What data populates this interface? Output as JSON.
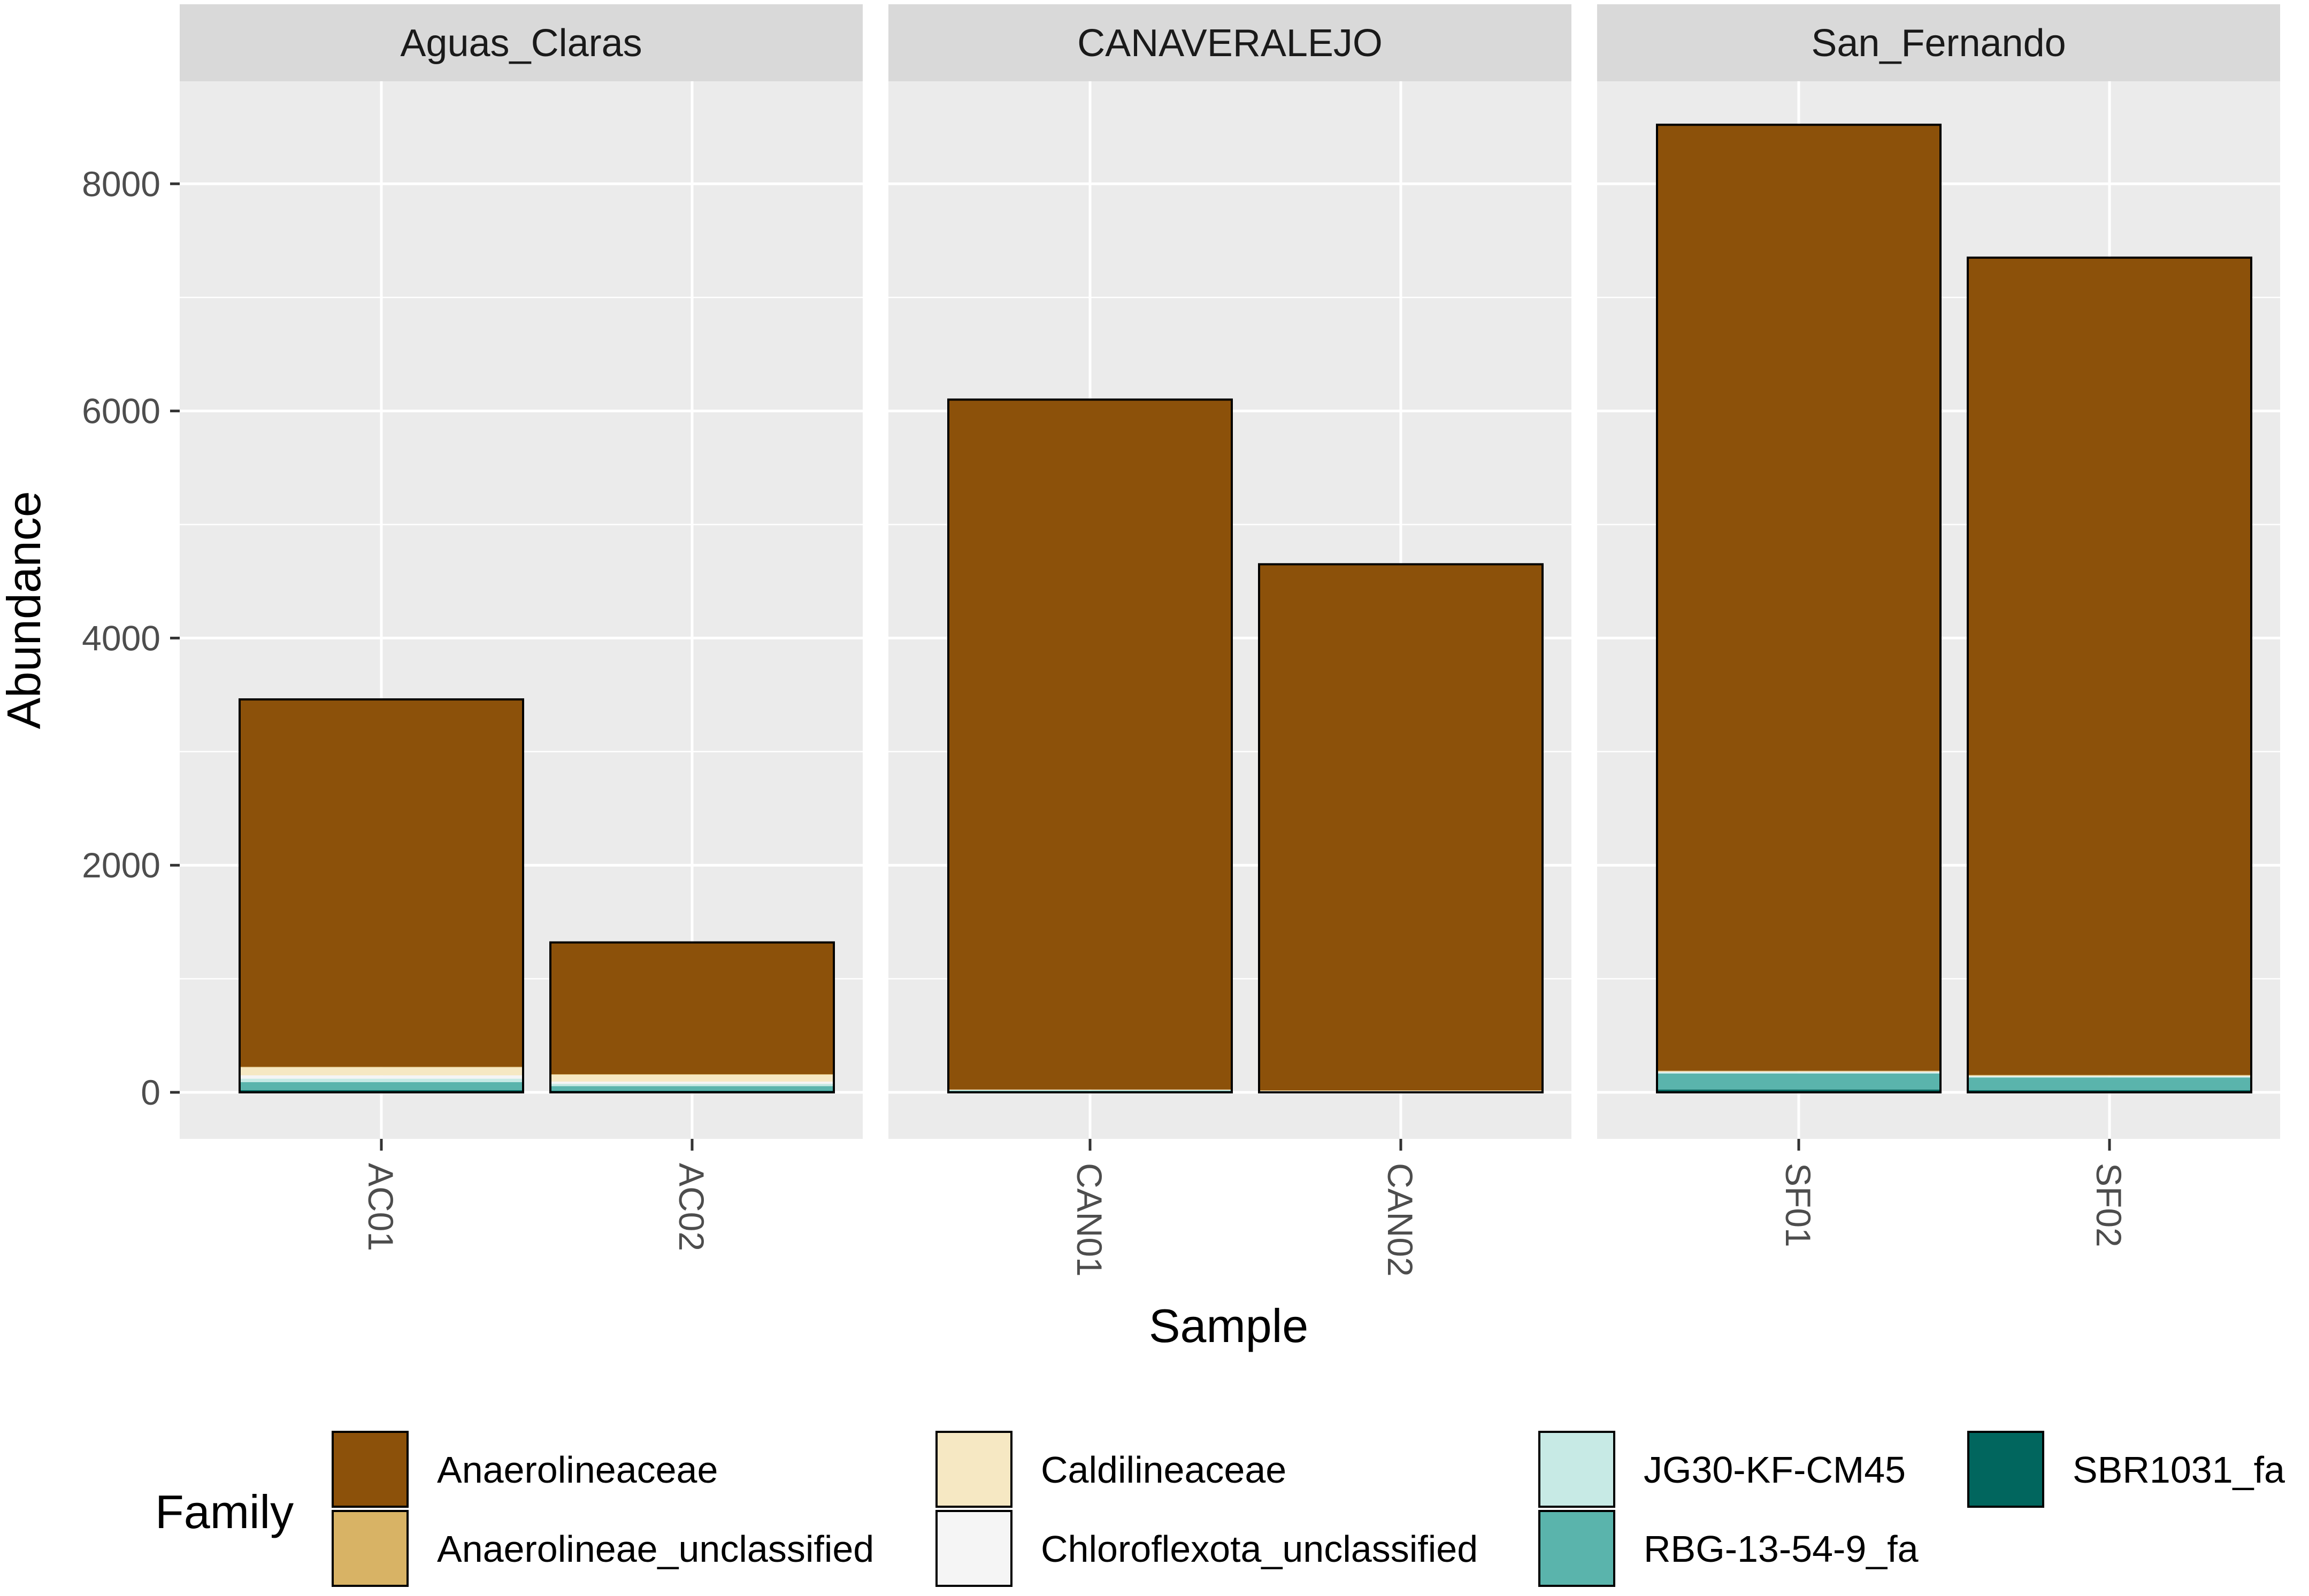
{
  "chart_data": {
    "type": "bar",
    "stacked": true,
    "faceted_by": "site",
    "ylabel": "Abundance",
    "xlabel": "Sample",
    "ylim": [
      0,
      8800
    ],
    "yticks": [
      0,
      2000,
      4000,
      6000,
      8000
    ],
    "facets": [
      {
        "name": "Aguas_Claras",
        "samples": [
          "AC01",
          "AC02"
        ]
      },
      {
        "name": "CANAVERALEJO",
        "samples": [
          "CAN01",
          "CAN02"
        ]
      },
      {
        "name": "San_Fernando",
        "samples": [
          "SF01",
          "SF02"
        ]
      }
    ],
    "categories": [
      "AC01",
      "AC02",
      "CAN01",
      "CAN02",
      "SF01",
      "SF02"
    ],
    "series": [
      {
        "name": "SBR1031_fa",
        "color": "#01665e",
        "values": [
          20,
          15,
          5,
          3,
          25,
          20
        ]
      },
      {
        "name": "RBG-13-54-9_fa",
        "color": "#5ab4ac",
        "values": [
          70,
          40,
          10,
          5,
          140,
          110
        ]
      },
      {
        "name": "JG30-KF-CM45",
        "color": "#c7eae5",
        "values": [
          30,
          20,
          3,
          2,
          10,
          8
        ]
      },
      {
        "name": "Chloroflexota_unclassified",
        "color": "#f5f5f5",
        "values": [
          30,
          20,
          2,
          2,
          5,
          5
        ]
      },
      {
        "name": "Caldilineaceae",
        "color": "#f6e8c3",
        "values": [
          70,
          60,
          2,
          2,
          5,
          5
        ]
      },
      {
        "name": "Anaerolineae_unclassified",
        "color": "#d8b365",
        "values": [
          5,
          5,
          3,
          3,
          5,
          5
        ]
      },
      {
        "name": "Anaerolineaceae",
        "color": "#8c510a",
        "values": [
          3235,
          1160,
          6075,
          4633,
          8330,
          7197
        ]
      }
    ],
    "legend": {
      "title": "Family",
      "position": "bottom",
      "entries": [
        {
          "name": "Anaerolineaceae",
          "color": "#8c510a"
        },
        {
          "name": "Anaerolineae_unclassified",
          "color": "#d8b365"
        },
        {
          "name": "Caldilineaceae",
          "color": "#f6e8c3"
        },
        {
          "name": "Chloroflexota_unclassified",
          "color": "#f5f5f5"
        },
        {
          "name": "JG30-KF-CM45",
          "color": "#c7eae5"
        },
        {
          "name": "RBG-13-54-9_fa",
          "color": "#5ab4ac"
        },
        {
          "name": "SBR1031_fa",
          "color": "#01665e"
        }
      ]
    },
    "colors": {
      "panel_bg": "#ebebeb",
      "strip_bg": "#d9d9d9",
      "grid": "#ffffff",
      "bar_outline": "#000000"
    }
  }
}
